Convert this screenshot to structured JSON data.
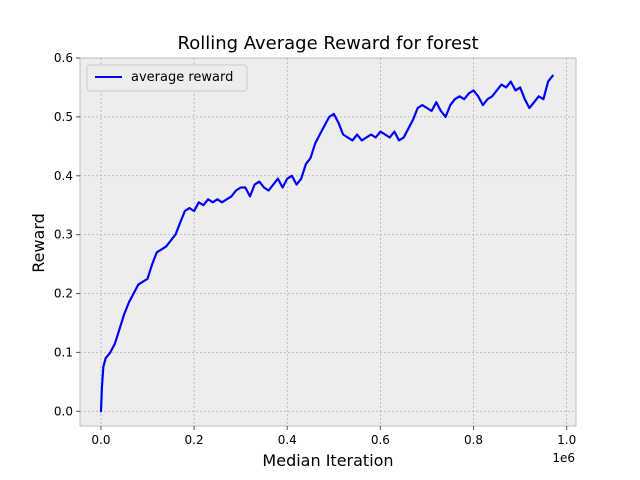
{
  "chart_data": {
    "type": "line",
    "title": "Rolling Average Reward for forest",
    "xlabel": "Median Iteration",
    "ylabel": "Reward",
    "x_offset_label": "1e6",
    "xlim": [
      -0.045,
      1.02
    ],
    "ylim": [
      -0.025,
      0.6
    ],
    "xticks": [
      0.0,
      0.2,
      0.4,
      0.6,
      0.8,
      1.0
    ],
    "xtick_labels": [
      "0.0",
      "0.2",
      "0.4",
      "0.6",
      "0.8",
      "1.0"
    ],
    "yticks": [
      0.0,
      0.1,
      0.2,
      0.3,
      0.4,
      0.5,
      0.6
    ],
    "ytick_labels": [
      "0.0",
      "0.1",
      "0.2",
      "0.3",
      "0.4",
      "0.5",
      "0.6"
    ],
    "grid": true,
    "legend": "top-left",
    "background_color": "#ededed",
    "series": [
      {
        "name": "average reward",
        "color": "#0000ff",
        "x": [
          0.0,
          0.002,
          0.005,
          0.01,
          0.02,
          0.03,
          0.04,
          0.05,
          0.06,
          0.07,
          0.08,
          0.09,
          0.1,
          0.11,
          0.12,
          0.13,
          0.14,
          0.15,
          0.16,
          0.17,
          0.18,
          0.19,
          0.2,
          0.21,
          0.22,
          0.23,
          0.24,
          0.25,
          0.26,
          0.27,
          0.28,
          0.29,
          0.3,
          0.31,
          0.32,
          0.33,
          0.34,
          0.35,
          0.36,
          0.37,
          0.38,
          0.39,
          0.4,
          0.41,
          0.42,
          0.43,
          0.44,
          0.45,
          0.46,
          0.47,
          0.48,
          0.49,
          0.5,
          0.51,
          0.52,
          0.53,
          0.54,
          0.55,
          0.56,
          0.57,
          0.58,
          0.59,
          0.6,
          0.61,
          0.62,
          0.63,
          0.64,
          0.65,
          0.66,
          0.67,
          0.68,
          0.69,
          0.7,
          0.71,
          0.72,
          0.73,
          0.74,
          0.75,
          0.76,
          0.77,
          0.78,
          0.79,
          0.8,
          0.81,
          0.82,
          0.83,
          0.84,
          0.85,
          0.86,
          0.87,
          0.88,
          0.89,
          0.9,
          0.91,
          0.92,
          0.93,
          0.94,
          0.95,
          0.96,
          0.97
        ],
        "y": [
          0.0,
          0.04,
          0.075,
          0.09,
          0.1,
          0.115,
          0.14,
          0.165,
          0.185,
          0.2,
          0.215,
          0.22,
          0.225,
          0.25,
          0.27,
          0.275,
          0.28,
          0.29,
          0.3,
          0.32,
          0.34,
          0.345,
          0.34,
          0.355,
          0.35,
          0.36,
          0.355,
          0.36,
          0.355,
          0.36,
          0.365,
          0.375,
          0.38,
          0.38,
          0.365,
          0.385,
          0.39,
          0.38,
          0.375,
          0.385,
          0.395,
          0.38,
          0.395,
          0.4,
          0.385,
          0.395,
          0.42,
          0.43,
          0.455,
          0.47,
          0.485,
          0.5,
          0.505,
          0.49,
          0.47,
          0.465,
          0.46,
          0.47,
          0.46,
          0.465,
          0.47,
          0.465,
          0.475,
          0.47,
          0.465,
          0.475,
          0.46,
          0.465,
          0.48,
          0.495,
          0.515,
          0.52,
          0.515,
          0.51,
          0.525,
          0.51,
          0.5,
          0.52,
          0.53,
          0.535,
          0.53,
          0.54,
          0.545,
          0.535,
          0.52,
          0.53,
          0.535,
          0.545,
          0.555,
          0.55,
          0.56,
          0.545,
          0.55,
          0.53,
          0.515,
          0.525,
          0.535,
          0.53,
          0.56,
          0.57
        ]
      }
    ]
  }
}
